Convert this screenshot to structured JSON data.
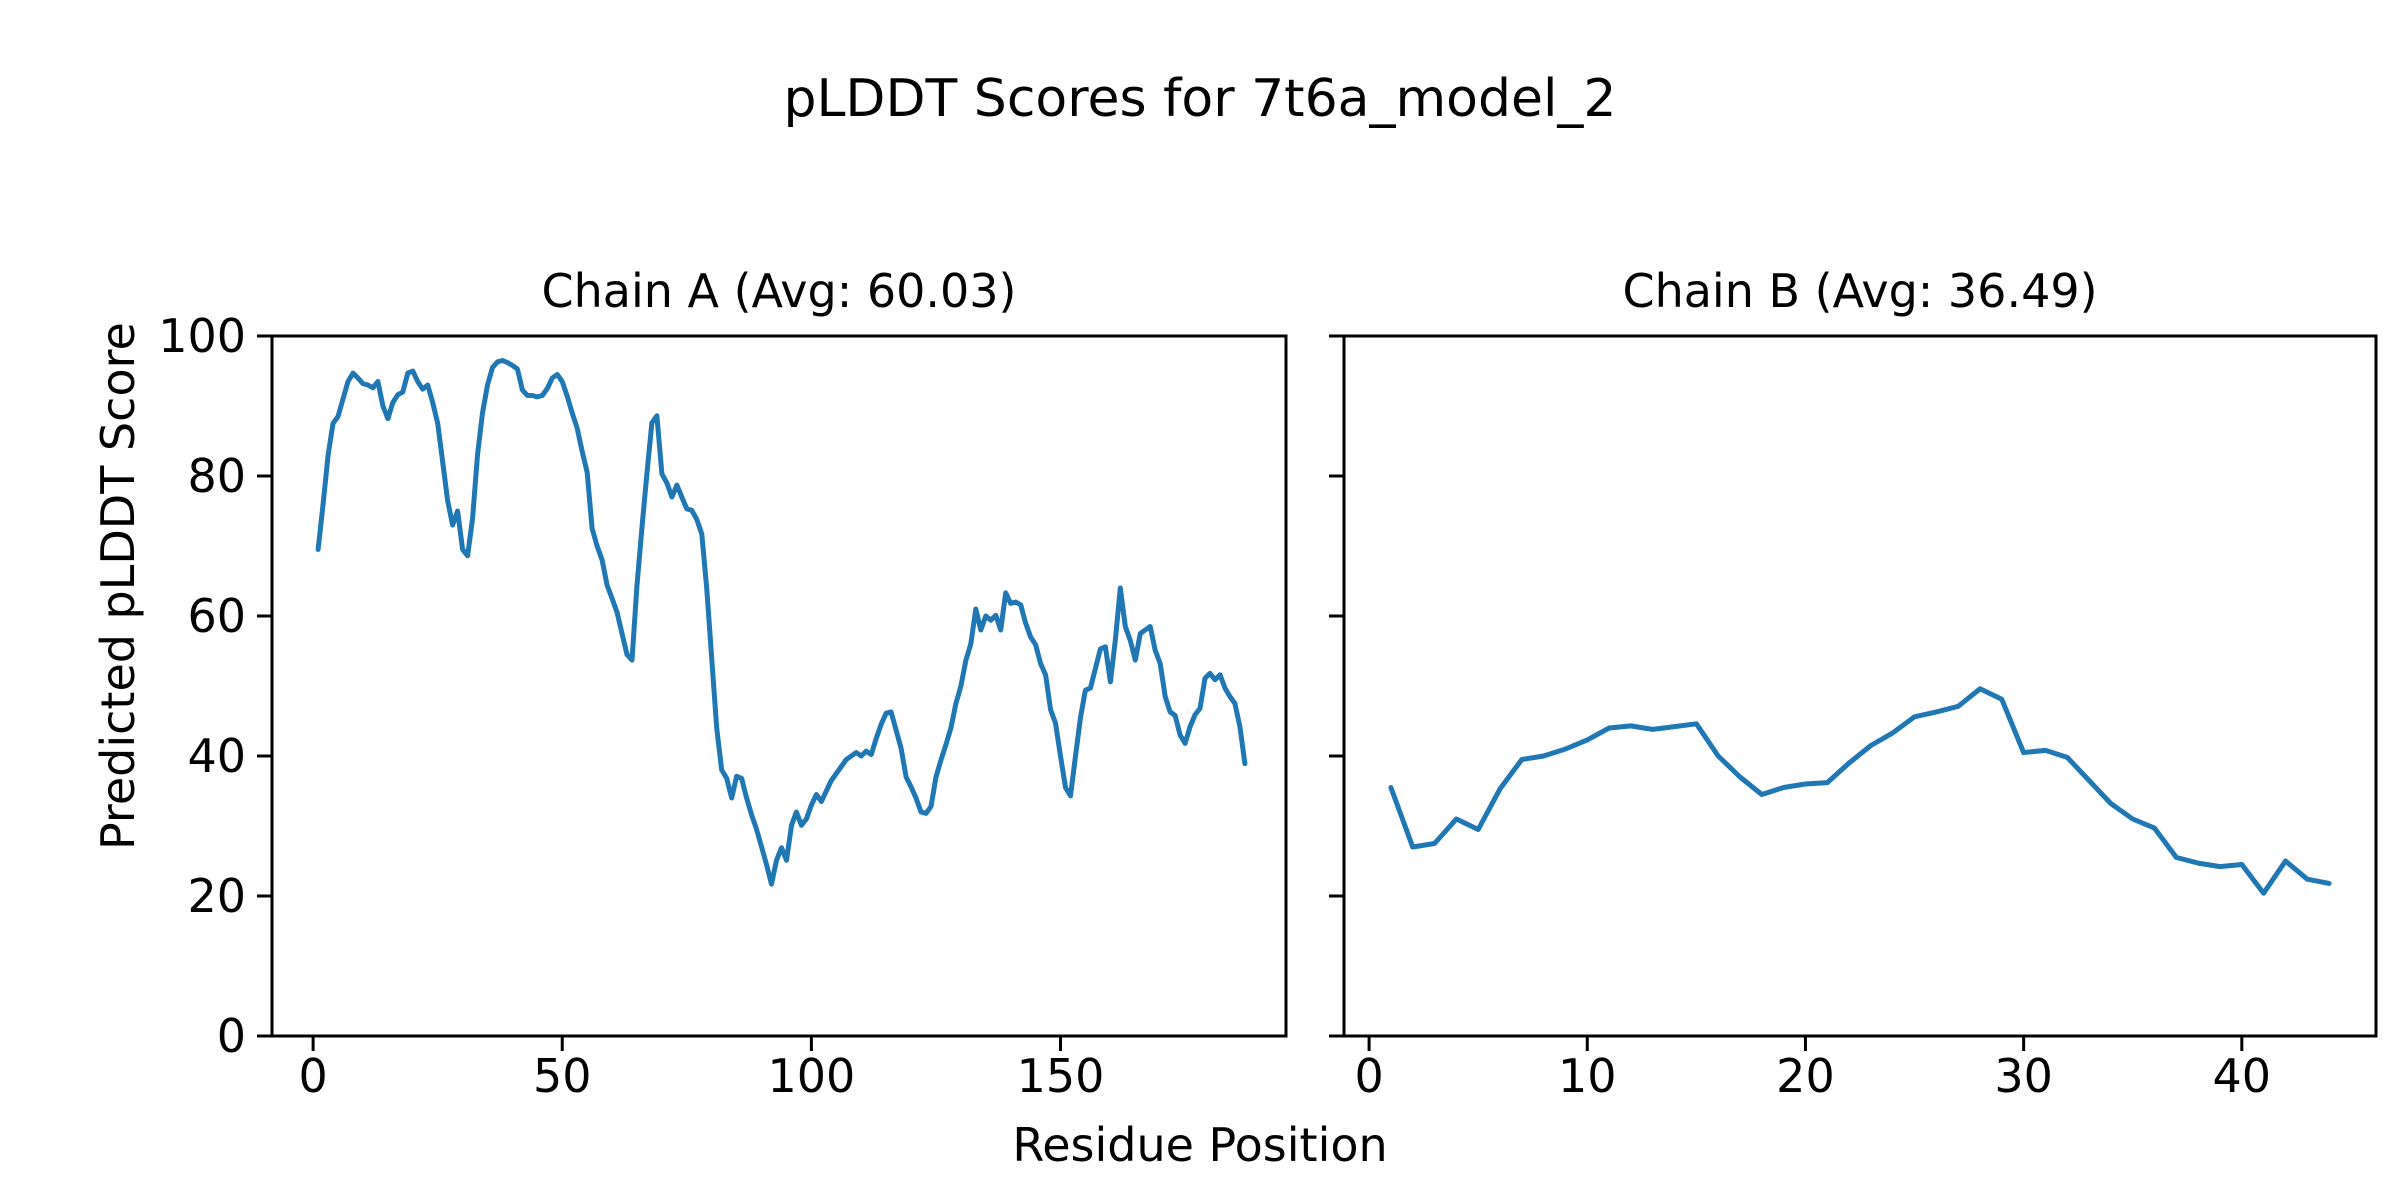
{
  "suptitle": "pLDDT Scores for 7t6a_model_2",
  "xlabel": "Residue Position",
  "ylabel": "Predicted pLDDT Score",
  "line_color": "#1f77b4",
  "axis_color": "#000000",
  "background_color": "#ffffff",
  "chart_data": [
    {
      "type": "line",
      "title": "Chain A (Avg: 60.03)",
      "chain": "A",
      "avg": 60.03,
      "x_start": 1,
      "n_residues": 186,
      "xlim": [
        -8.25,
        195.25
      ],
      "ylim": [
        0,
        100
      ],
      "x_ticks": [
        0,
        50,
        100,
        150
      ],
      "y_ticks": [
        0,
        20,
        40,
        60,
        80,
        100
      ],
      "show_y_tick_labels": true,
      "grid": false,
      "values": [
        69.5,
        76,
        83,
        87.5,
        88.5,
        91,
        93.5,
        94.7,
        94,
        93.2,
        93,
        92.6,
        93.5,
        90,
        88.2,
        90.5,
        91.6,
        92,
        94.7,
        95,
        93.5,
        92.4,
        93,
        90.5,
        87.5,
        82,
        76.5,
        73,
        75,
        69.5,
        68.6,
        74,
        83,
        89,
        93,
        95.5,
        96.3,
        96.5,
        96.2,
        95.8,
        95.3,
        92.3,
        91.5,
        91.5,
        91.3,
        91.5,
        92.5,
        94,
        94.5,
        93.5,
        91.4,
        89,
        86.8,
        83.5,
        80.5,
        72.5,
        70,
        68,
        64.4,
        62.5,
        60.5,
        57.5,
        54.5,
        53.7,
        64.4,
        72.7,
        80.5,
        87.6,
        88.6,
        80.3,
        79,
        77,
        78.7,
        77,
        75.3,
        75.1,
        73.8,
        71.7,
        64,
        54,
        44,
        38,
        36.8,
        34,
        37.1,
        36.8,
        34,
        31.6,
        29.5,
        27,
        24.5,
        21.7,
        25.1,
        26.9,
        25.1,
        30.1,
        32,
        30.1,
        31,
        33,
        34.5,
        33.5,
        35,
        36.5,
        37.5,
        38.5,
        39.5,
        40,
        40.5,
        40,
        40.7,
        40.2,
        42.5,
        44.5,
        46.1,
        46.3,
        43.7,
        41.1,
        37,
        35.6,
        34,
        32,
        31.8,
        32.8,
        37,
        39.4,
        41.6,
        44,
        47.5,
        50,
        53.7,
        56,
        61,
        58,
        60,
        59.4,
        60.1,
        58,
        63.3,
        61.8,
        62,
        61.6,
        59,
        57,
        55.9,
        53.2,
        51.6,
        46.6,
        44.7,
        40,
        35.5,
        34.3,
        40,
        45.5,
        49.4,
        49.7,
        52.5,
        55.3,
        55.6,
        50.6,
        56.5,
        64,
        58.5,
        56.5,
        53.7,
        57.5,
        58,
        58.5,
        55.1,
        53.2,
        48.5,
        46.3,
        45.8,
        43,
        41.8,
        44.2,
        45.9,
        46.8,
        51.1,
        51.8,
        50.9,
        51.6,
        49.7,
        48.5,
        47.5,
        44.2,
        38.9
      ]
    },
    {
      "type": "line",
      "title": "Chain B (Avg: 36.49)",
      "chain": "B",
      "avg": 36.49,
      "x_start": 1,
      "n_residues": 44,
      "xlim": [
        -1.15,
        46.15
      ],
      "ylim": [
        0,
        100
      ],
      "x_ticks": [
        0,
        10,
        20,
        30,
        40
      ],
      "y_ticks": [
        0,
        20,
        40,
        60,
        80,
        100
      ],
      "show_y_tick_labels": false,
      "grid": false,
      "values": [
        35.5,
        27,
        27.5,
        31,
        29.5,
        35.3,
        39.5,
        40,
        41,
        42.3,
        44,
        44.3,
        43.8,
        44.2,
        44.6,
        40,
        37,
        34.5,
        35.5,
        36,
        36.2,
        39,
        41.5,
        43.3,
        45.6,
        46.3,
        47.1,
        49.6,
        48.1,
        40.5,
        40.8,
        39.8,
        36.5,
        33.2,
        31,
        29.7,
        25.5,
        24.7,
        24.2,
        24.5,
        20.4,
        25,
        22.4,
        21.8
      ]
    }
  ]
}
